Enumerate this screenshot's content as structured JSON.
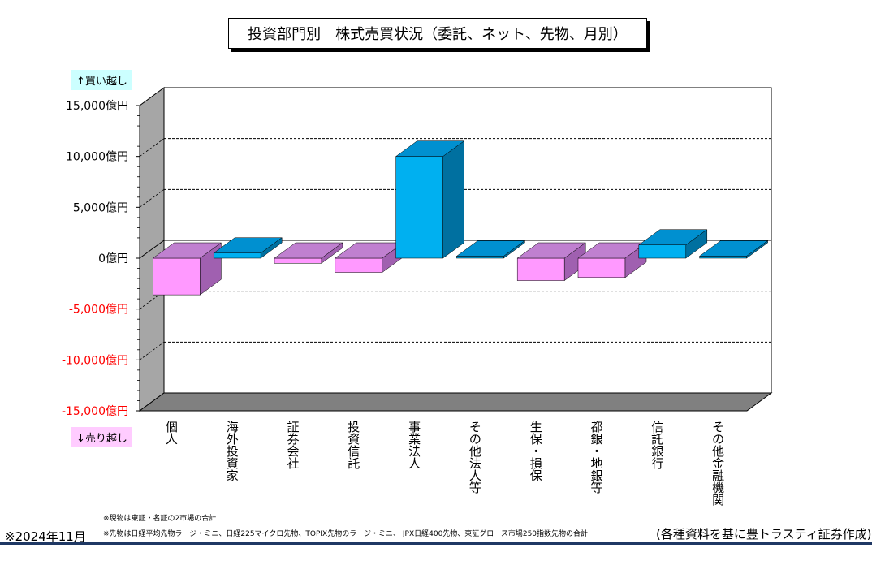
{
  "title": "投資部門別　株式売買状況（委託、ネット、先物、月別）",
  "buy_label": "↑買い越し",
  "sell_label": "↓売り越し",
  "notes": [
    "※現物は東証・名証の2市場の合計",
    "※先物は日経平均先物ラージ・ミニ、日経225マイクロ先物、TOPIX先物のラージ・ミニ、 JPX日経400先物、東証グロース市場250指数先物の合計"
  ],
  "date": "※2024年11月",
  "source": "(各種資料を基に豊トラスティ証券作成)",
  "chart_data": {
    "type": "bar",
    "categories": [
      "個人",
      "海外投資家",
      "証券会社",
      "投資信託",
      "事業法人",
      "その他法人等",
      "生保・損保",
      "都銀・地銀等",
      "信託銀行",
      "その他金融機関"
    ],
    "values": [
      -3600,
      500,
      -500,
      -1400,
      10000,
      200,
      -2200,
      -1900,
      1300,
      200
    ],
    "yticks": [
      "15,000億円",
      "10,000億円",
      "5,000億円",
      "0億円",
      "-5,000億円",
      "-10,000億円",
      "-15,000億円"
    ],
    "ylim": [
      -15000,
      15000
    ],
    "colors": {
      "positive": "#00b0f0",
      "positive_top": "#0090d0",
      "positive_side": "#0070a0",
      "negative": "#ff99ff",
      "negative_top": "#c080d0",
      "negative_side": "#a060b0",
      "negative_tick": "#ff0000",
      "wall": "#a6a6a6",
      "floor": "#808080"
    }
  }
}
